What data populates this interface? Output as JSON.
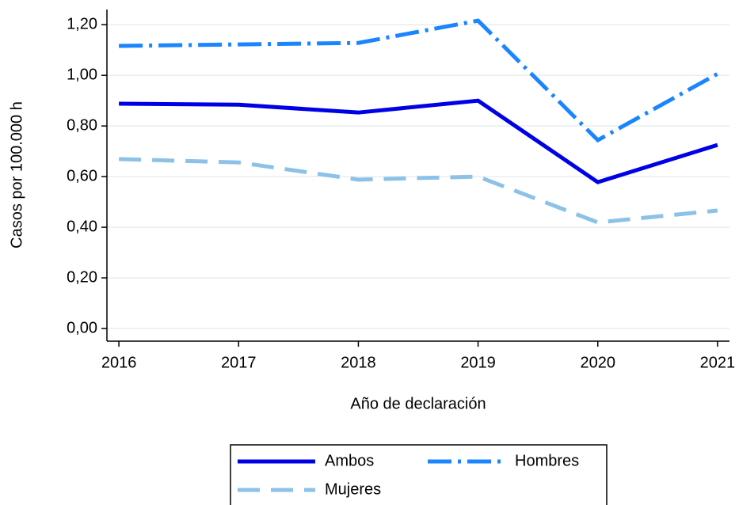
{
  "chart_data": {
    "type": "line",
    "x_label": "Año de declaración",
    "y_label": "Casos por 100.000 h",
    "x": [
      2016,
      2017,
      2018,
      2019,
      2020,
      2021
    ],
    "xlim": [
      2015.9,
      2021.1
    ],
    "xticks": [
      2016,
      2017,
      2018,
      2019,
      2020,
      2021
    ],
    "ylim": [
      -0.05,
      1.26
    ],
    "yticks": [
      {
        "value": 0,
        "label": "0,00"
      },
      {
        "value": 0.2,
        "label": "0,20"
      },
      {
        "value": 0.4,
        "label": "0,40"
      },
      {
        "value": 0.6,
        "label": "0,60"
      },
      {
        "value": 0.8,
        "label": "0,80"
      },
      {
        "value": 1.0,
        "label": "1,00"
      },
      {
        "value": 1.2,
        "label": "1,20"
      }
    ],
    "grid": true,
    "legend": "bottom",
    "series": [
      {
        "name": "Ambos",
        "color": "#0000e6",
        "dash": "solid",
        "values": [
          0.888,
          0.884,
          0.853,
          0.9,
          0.578,
          0.725
        ]
      },
      {
        "name": "Hombres",
        "color": "#1a85ff",
        "dash": "dashdot",
        "values": [
          1.116,
          1.122,
          1.128,
          1.216,
          0.744,
          1.006
        ]
      },
      {
        "name": "Mujeres",
        "color": "#8cc1e8",
        "dash": "dashed",
        "values": [
          0.669,
          0.656,
          0.588,
          0.6,
          0.419,
          0.466
        ]
      }
    ]
  }
}
